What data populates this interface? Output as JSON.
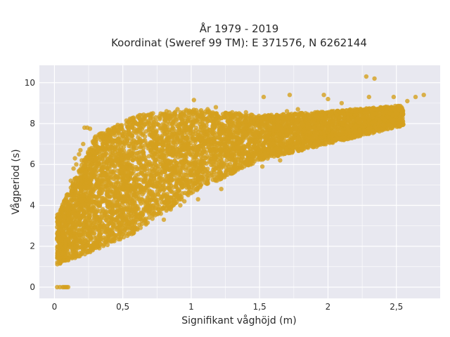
{
  "chart_data": {
    "type": "scatter",
    "title_line1": "År 1979 - 2019",
    "title_line2": "Koordinat (Sweref 99 TM): E 371576, N 6262144",
    "xlabel": "Signifikant våghöjd (m)",
    "ylabel": "Vågperiod (s)",
    "xlim": [
      -0.11,
      2.82
    ],
    "ylim": [
      -0.55,
      10.85
    ],
    "xticks": [
      0,
      0.5,
      1,
      1.5,
      2,
      2.5
    ],
    "xtick_labels": [
      "0",
      "0,5",
      "1",
      "1,5",
      "2",
      "2,5"
    ],
    "yticks": [
      0,
      2,
      4,
      6,
      8,
      10
    ],
    "ytick_labels": [
      "0",
      "2",
      "4",
      "6",
      "8",
      "10"
    ],
    "grid": true,
    "colors": {
      "marker": "#d4a01e",
      "plot_bg": "#e8e8f0",
      "grid": "#ffffff"
    },
    "points": [
      [
        0.02,
        0
      ],
      [
        0.04,
        0
      ],
      [
        0.06,
        0
      ],
      [
        0.07,
        0
      ],
      [
        0.08,
        0
      ],
      [
        0.09,
        0
      ],
      [
        0.1,
        0
      ],
      [
        2.28,
        10.3
      ],
      [
        2.34,
        10.2
      ],
      [
        2.7,
        9.4
      ],
      [
        2.64,
        9.3
      ],
      [
        2.58,
        9.1
      ],
      [
        2.48,
        9.3
      ],
      [
        1.97,
        9.4
      ],
      [
        1.72,
        9.4
      ],
      [
        1.53,
        9.3
      ],
      [
        1.18,
        8.8
      ],
      [
        1.12,
        8.7
      ],
      [
        1.02,
        9.15
      ],
      [
        0.22,
        7.8
      ],
      [
        0.24,
        7.8
      ],
      [
        0.26,
        7.75
      ],
      [
        2.1,
        9.0
      ],
      [
        2.3,
        9.3
      ],
      [
        2.0,
        9.2
      ],
      [
        1.6,
        8.2
      ],
      [
        1.4,
        8.1
      ],
      [
        1.3,
        8.55
      ],
      [
        1.35,
        8.5
      ],
      [
        1.4,
        8.55
      ],
      [
        0.9,
        8.7
      ],
      [
        0.82,
        8.6
      ],
      [
        0.72,
        8.5
      ],
      [
        0.5,
        7.4
      ],
      [
        0.46,
        7.7
      ],
      [
        0.55,
        7.5
      ],
      [
        0.6,
        7.6
      ],
      [
        1.65,
        6.2
      ],
      [
        1.55,
        6.4
      ],
      [
        1.52,
        5.9
      ],
      [
        0.8,
        3.3
      ],
      [
        0.76,
        3.6
      ],
      [
        0.92,
        4.0
      ],
      [
        1.0,
        4.6
      ],
      [
        0.95,
        4.2
      ],
      [
        0.85,
        3.8
      ],
      [
        0.88,
        4.5
      ],
      [
        0.68,
        3.9
      ],
      [
        1.12,
        5.2
      ],
      [
        1.05,
        4.3
      ],
      [
        1.2,
        5.4
      ],
      [
        1.15,
        5.6
      ],
      [
        1.22,
        4.8
      ],
      [
        1.28,
        5.7
      ],
      [
        1.6,
        6.6
      ],
      [
        2.12,
        7.3
      ],
      [
        2.2,
        7.6
      ],
      [
        2.3,
        8.0
      ],
      [
        2.4,
        8.3
      ],
      [
        2.35,
        8.7
      ],
      [
        2.45,
        8.5
      ],
      [
        1.05,
        8.4
      ],
      [
        1.08,
        8.5
      ],
      [
        1.2,
        8.35
      ],
      [
        1.25,
        8.3
      ],
      [
        0.7,
        8.3
      ],
      [
        0.66,
        8.25
      ],
      [
        1.8,
        7.8
      ],
      [
        1.85,
        8.0
      ],
      [
        1.9,
        8.2
      ],
      [
        1.95,
        8.4
      ],
      [
        1.7,
        8.6
      ],
      [
        1.78,
        8.7
      ],
      [
        0.34,
        7.2
      ],
      [
        0.38,
        7.4
      ],
      [
        0.42,
        7.5
      ],
      [
        0.3,
        6.9
      ],
      [
        0.28,
        6.6
      ],
      [
        0.2,
        6.2
      ],
      [
        0.08,
        2.0
      ],
      [
        0.07,
        3.2
      ],
      [
        0.06,
        2.6
      ],
      [
        0.05,
        2.3
      ],
      [
        0.09,
        4.5
      ],
      [
        0.12,
        5.2
      ],
      [
        0.14,
        5.8
      ],
      [
        0.15,
        6.3
      ],
      [
        0.16,
        6.0
      ],
      [
        0.18,
        6.5
      ],
      [
        0.19,
        6.7
      ],
      [
        0.21,
        7.0
      ]
    ],
    "density_bands": [
      {
        "x_from": 0.02,
        "x_to": 0.3,
        "y_low_at_from": 1.1,
        "y_low_at_to": 1.8,
        "y_high_at_from": 3.6,
        "y_high_at_to": 7.4
      },
      {
        "x_from": 0.3,
        "x_to": 0.6,
        "y_low_at_from": 1.8,
        "y_low_at_to": 2.7,
        "y_high_at_from": 7.4,
        "y_high_at_to": 8.4
      },
      {
        "x_from": 0.6,
        "x_to": 1.0,
        "y_low_at_from": 2.7,
        "y_low_at_to": 4.6,
        "y_high_at_from": 8.4,
        "y_high_at_to": 8.7
      },
      {
        "x_from": 1.0,
        "x_to": 1.5,
        "y_low_at_from": 4.6,
        "y_low_at_to": 6.2,
        "y_high_at_from": 8.7,
        "y_high_at_to": 8.4
      },
      {
        "x_from": 1.5,
        "x_to": 2.0,
        "y_low_at_from": 6.2,
        "y_low_at_to": 7.0,
        "y_high_at_from": 8.4,
        "y_high_at_to": 8.6
      },
      {
        "x_from": 2.0,
        "x_to": 2.55,
        "y_low_at_from": 7.0,
        "y_low_at_to": 7.9,
        "y_high_at_from": 8.6,
        "y_high_at_to": 8.9
      }
    ],
    "point_count_estimate": 6000
  }
}
